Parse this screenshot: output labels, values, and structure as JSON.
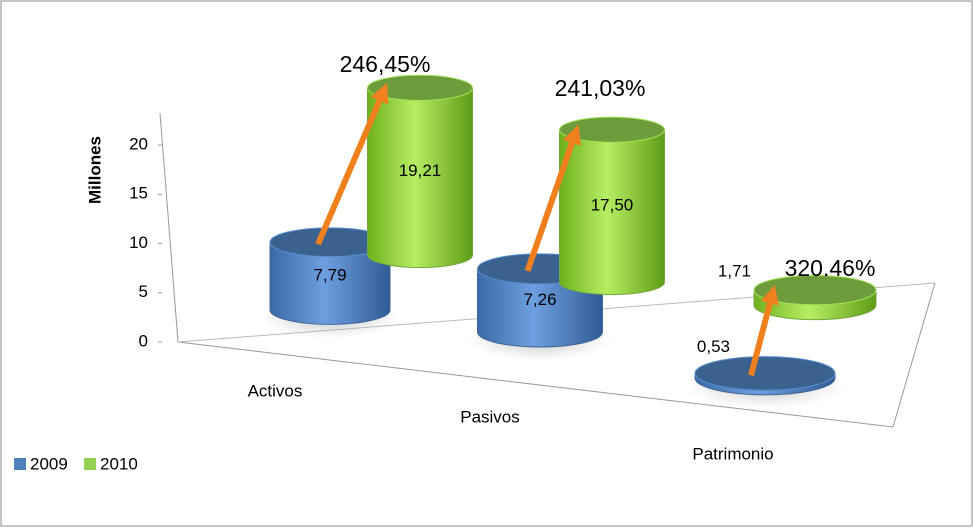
{
  "chart_data": {
    "type": "cylinder3d",
    "y_label": "Millones",
    "categories": [
      "Activos",
      "Pasivos",
      "Patrimonio"
    ],
    "series": [
      {
        "name": "2009",
        "color": "#4f81bd",
        "values": [
          7.79,
          7.26,
          0.53
        ],
        "value_labels": [
          "7,79",
          "7,26",
          "0,53"
        ]
      },
      {
        "name": "2010",
        "color": "#92d050",
        "values": [
          19.21,
          17.5,
          1.71
        ],
        "value_labels": [
          "19,21",
          "17,50",
          "1,71"
        ]
      }
    ],
    "annotations": [
      "246,45%",
      "241,03%",
      "320.46%"
    ],
    "ylim": [
      0,
      20
    ],
    "yticks": [
      0,
      5,
      10,
      15,
      20
    ],
    "legend": "bottom-left"
  }
}
